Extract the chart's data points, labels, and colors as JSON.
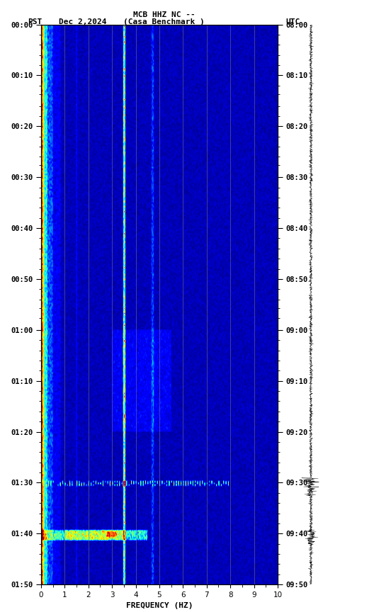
{
  "title_line1": "MCB HHZ NC --",
  "title_line2": "(Casa Benchmark )",
  "date_label": "Dec 2,2024",
  "left_tz": "PST",
  "right_tz": "UTC",
  "left_time_labels": [
    "00:00",
    "00:10",
    "00:20",
    "00:30",
    "00:40",
    "00:50",
    "01:00",
    "01:10",
    "01:20",
    "01:30",
    "01:40",
    "01:50"
  ],
  "right_time_labels": [
    "08:00",
    "08:10",
    "08:20",
    "08:30",
    "08:40",
    "08:50",
    "09:00",
    "09:10",
    "09:20",
    "09:30",
    "09:40",
    "09:50"
  ],
  "freq_min": 0,
  "freq_max": 10,
  "freq_label": "FREQUENCY (HZ)",
  "freq_ticks": [
    0,
    1,
    2,
    3,
    4,
    5,
    6,
    7,
    8,
    9,
    10
  ],
  "time_minutes": 110,
  "fig_width": 5.52,
  "fig_height": 8.64,
  "dpi": 100
}
